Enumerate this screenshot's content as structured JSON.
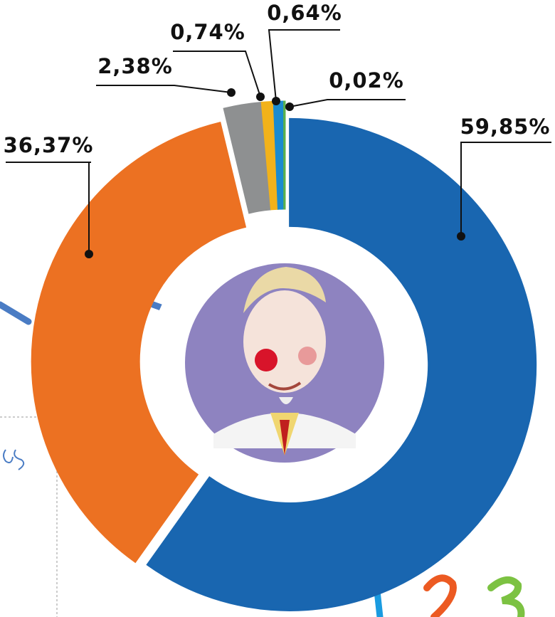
{
  "chart_data": {
    "type": "donut",
    "categories": [
      null,
      null,
      null,
      null,
      null,
      null
    ],
    "values": [
      59.85,
      36.37,
      2.38,
      0.74,
      0.64,
      0.02
    ],
    "value_labels": [
      "59,85%",
      "36,37%",
      "2,38%",
      "0,74%",
      "0,64%",
      "0,02%"
    ],
    "colors": [
      "#1966b0",
      "#ec7122",
      "#8e9091",
      "#f2b21a",
      "#1a8bcf",
      "#5ab04c"
    ]
  }
}
